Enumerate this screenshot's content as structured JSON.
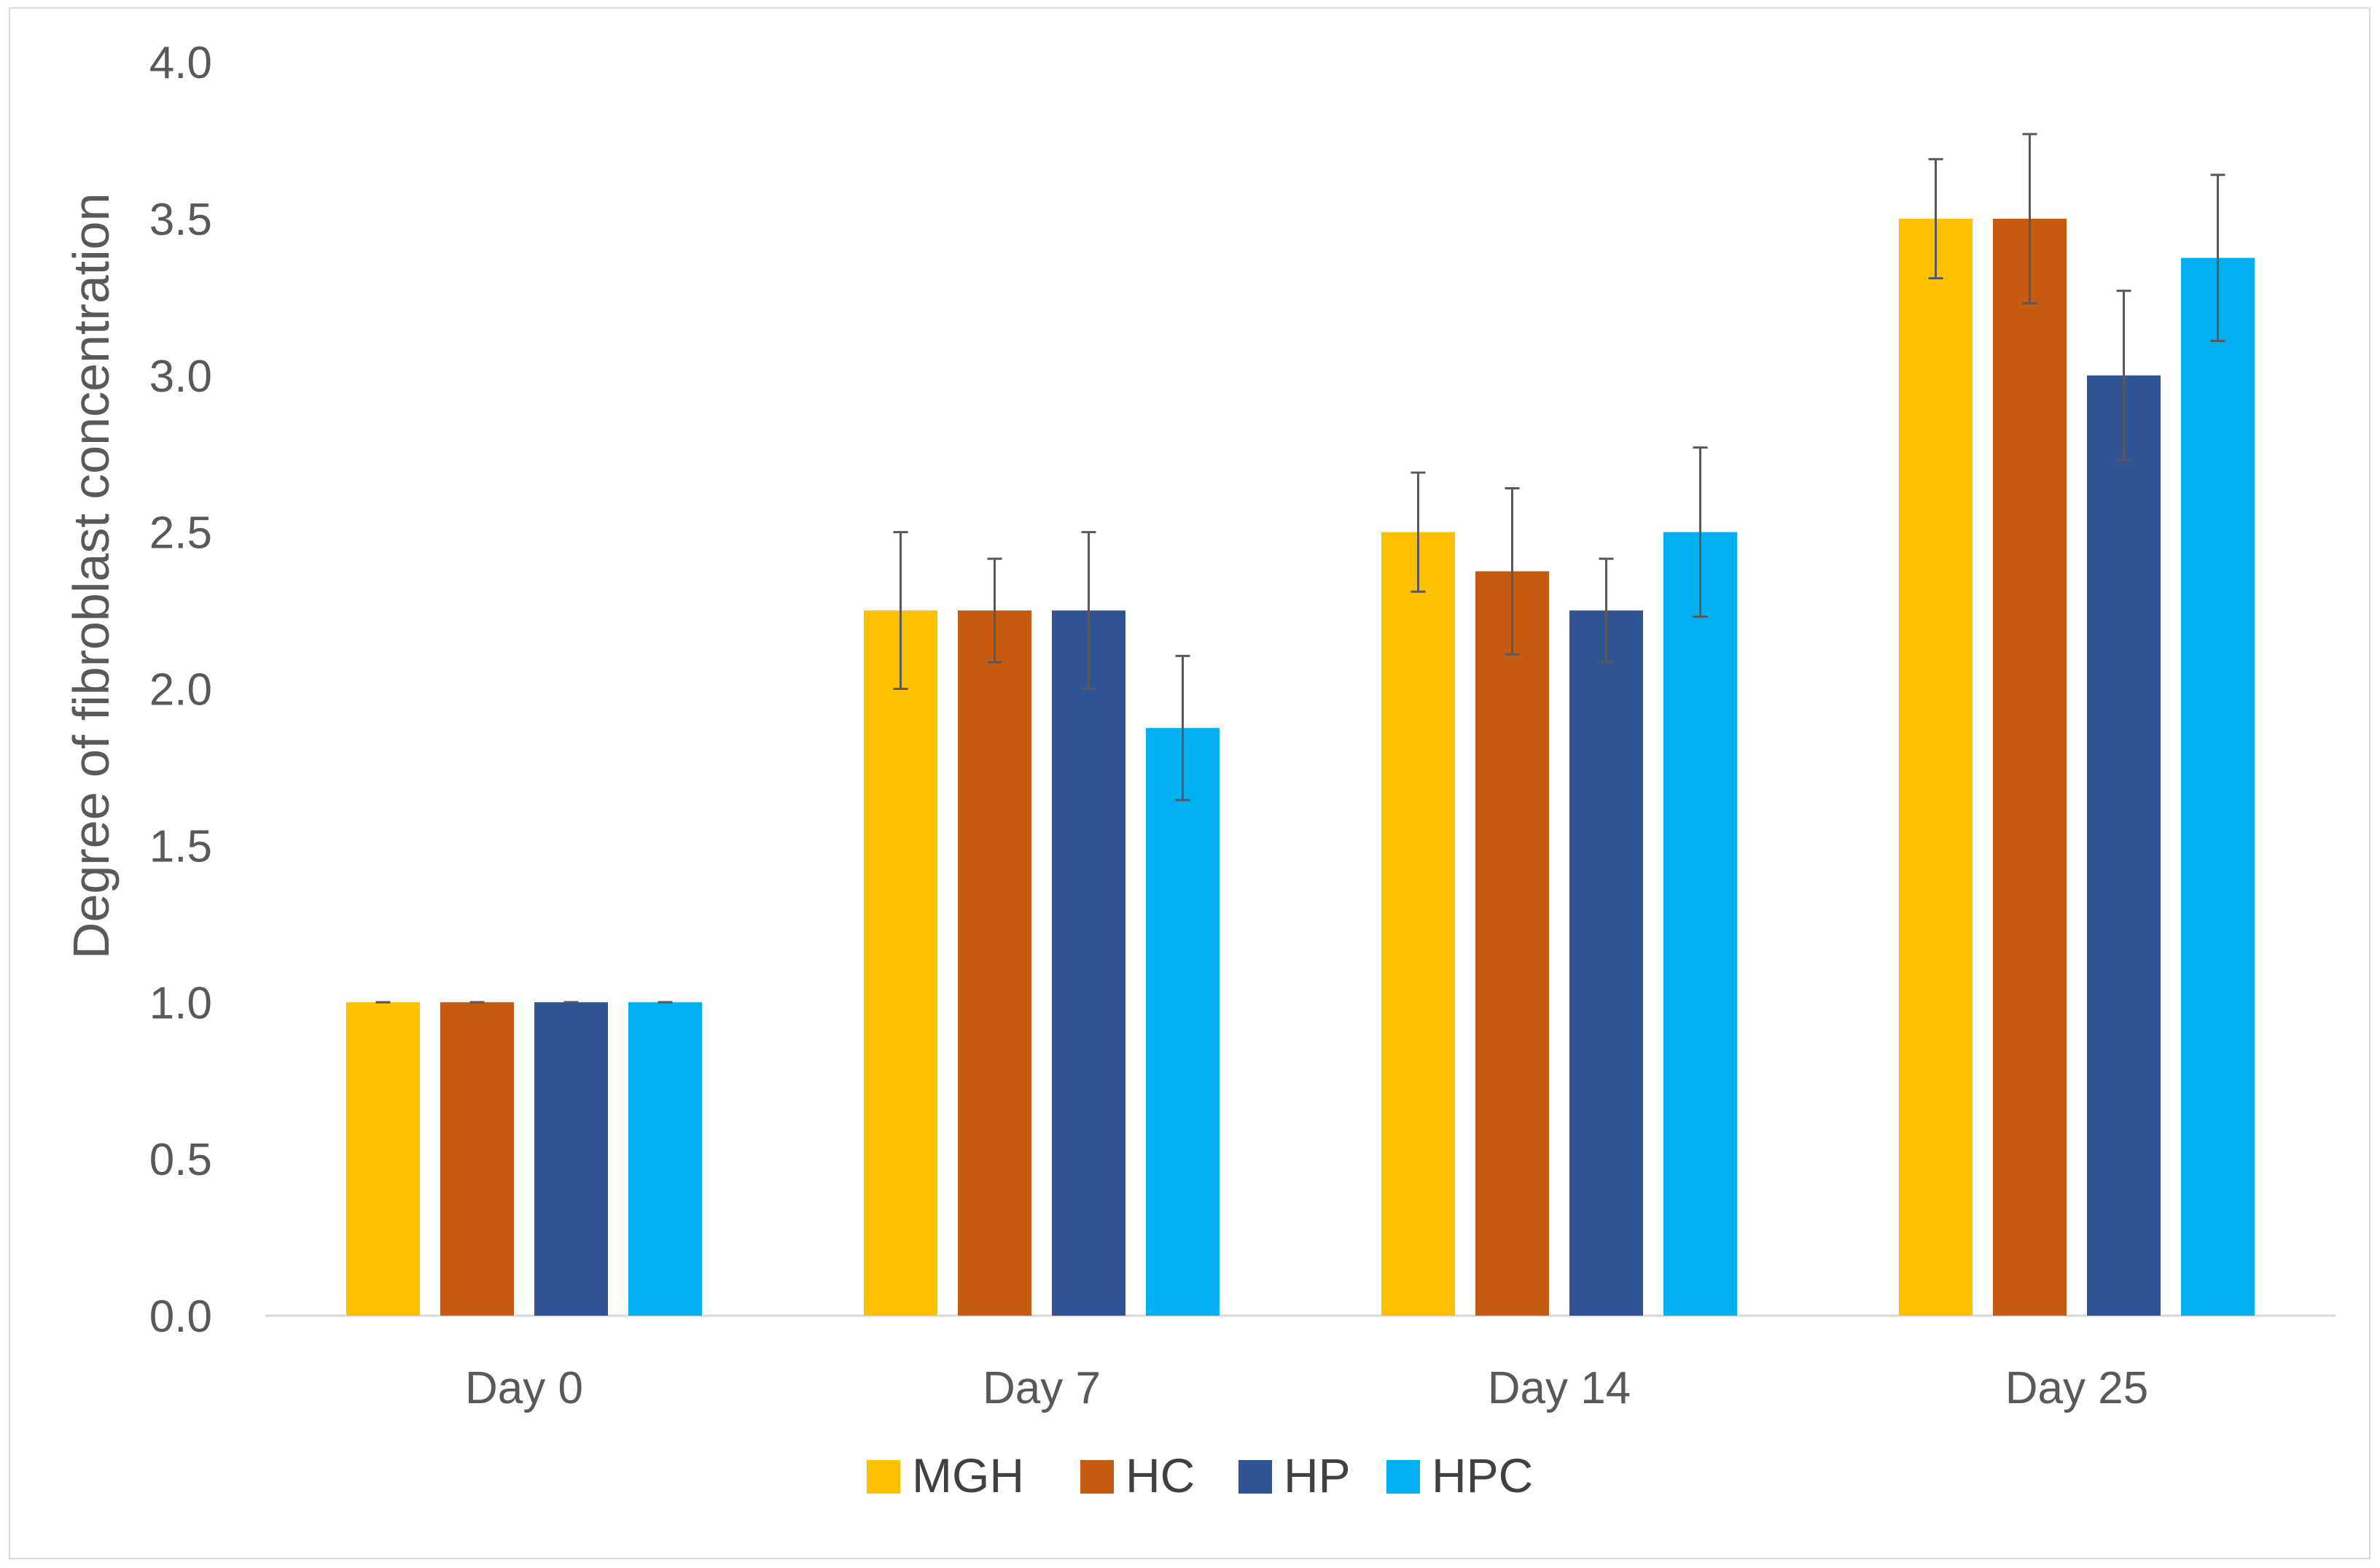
{
  "chart_data": {
    "type": "bar",
    "title": "",
    "xlabel": "",
    "ylabel": "Degree of fibroblast concentration",
    "ylim": [
      0,
      4
    ],
    "ytick_step": 0.5,
    "y_ticks": [
      "0.0",
      "0.5",
      "1.0",
      "1.5",
      "2.0",
      "2.5",
      "3.0",
      "3.5",
      "4.0"
    ],
    "grid": false,
    "legend_position": "bottom",
    "categories": [
      "Day 0",
      "Day 7",
      "Day 14",
      "Day 25"
    ],
    "series": [
      {
        "name": "MGH",
        "color": "#FFC000",
        "values": [
          1.0,
          2.25,
          2.5,
          3.5
        ],
        "errors": [
          0.0,
          0.25,
          0.19,
          0.19
        ]
      },
      {
        "name": "HC",
        "color": "#C55A11",
        "values": [
          1.0,
          2.25,
          2.375,
          3.5
        ],
        "errors": [
          0.0,
          0.165,
          0.265,
          0.27
        ]
      },
      {
        "name": "HP",
        "color": "#2F5597",
        "values": [
          1.0,
          2.25,
          2.25,
          3.0
        ],
        "errors": [
          0.0,
          0.25,
          0.165,
          0.27
        ]
      },
      {
        "name": "HPC",
        "color": "#00B0F0",
        "values": [
          1.0,
          1.875,
          2.5,
          3.375
        ],
        "errors": [
          0.0,
          0.23,
          0.27,
          0.265
        ]
      }
    ]
  }
}
